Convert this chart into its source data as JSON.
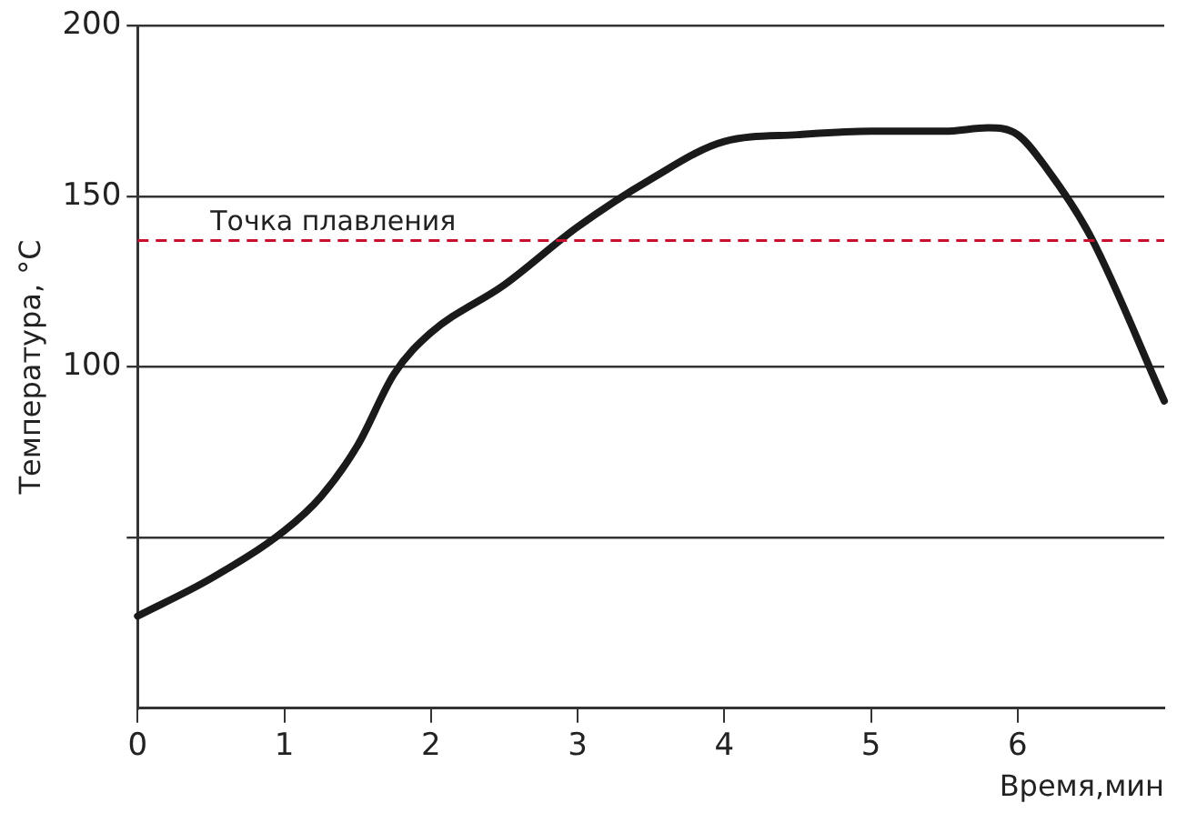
{
  "chart_data": {
    "type": "line",
    "xlabel": "Время,мин",
    "ylabel": "Температура, °C",
    "x": [
      0,
      0.5,
      1,
      1.25,
      1.5,
      1.75,
      2,
      2.5,
      3,
      3.5,
      4,
      4.5,
      5,
      5.5,
      5.8,
      6,
      6.2,
      6.5,
      7
    ],
    "series": [
      {
        "color": "#1a1a1a",
        "values": [
          27,
          38,
          52,
          62,
          77,
          98,
          110,
          124,
          141,
          155,
          166,
          168,
          169,
          169,
          170,
          168,
          158,
          138,
          90
        ]
      }
    ],
    "xlim": [
      0,
      7
    ],
    "xticks": [
      0,
      1,
      2,
      3,
      4,
      5,
      6
    ],
    "ylim": [
      0,
      200
    ],
    "yticks": [
      {
        "value": 50,
        "label": null
      },
      100,
      150,
      200
    ],
    "ref_lines": [
      {
        "axis": "y",
        "value": 137,
        "label": "Точка плавления",
        "color": "#c8102e",
        "line_style": "dashed"
      }
    ],
    "grid": "y",
    "legend": false,
    "marker": "none",
    "line_style": "solid"
  }
}
